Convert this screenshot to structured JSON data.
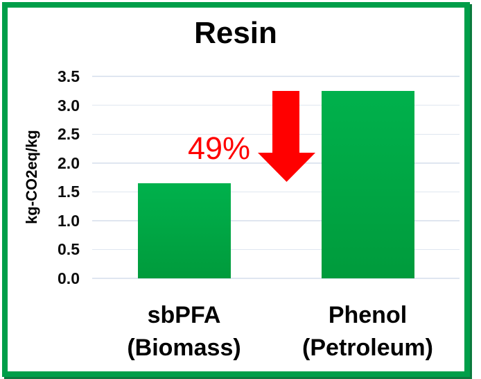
{
  "slide": {
    "title": "Resin"
  },
  "y_axis_label": "kg-CO2eq/kg",
  "reduction_annotation": "49%",
  "chart_data": {
    "type": "bar",
    "title": "Resin",
    "xlabel": "",
    "ylabel": "kg-CO2eq/kg",
    "categories": [
      "sbPFA (Biomass)",
      "Phenol (Petroleum)"
    ],
    "category_label_lines": [
      [
        "sbPFA",
        "(Biomass)"
      ],
      [
        "Phenol",
        "(Petroleum)"
      ]
    ],
    "values": [
      1.65,
      3.25
    ],
    "yticks": [
      0.0,
      0.5,
      1.0,
      1.5,
      2.0,
      2.5,
      3.0,
      3.5
    ],
    "ylim": [
      0,
      3.5
    ],
    "grid": true,
    "legend": false,
    "annotations": [
      {
        "type": "text",
        "text": "49%",
        "color": "#FF0000"
      },
      {
        "type": "down-arrow",
        "color": "#FF0000"
      }
    ]
  },
  "colors": {
    "background": "#FFFFFF",
    "frame": "#009E49",
    "frame_shadow": "#0B7A3E",
    "bar_top": "#00B14C",
    "bar_bottom": "#009B3C",
    "gridline": "#DFE6F0",
    "text": "#000000",
    "accent_red": "#FF0000"
  }
}
